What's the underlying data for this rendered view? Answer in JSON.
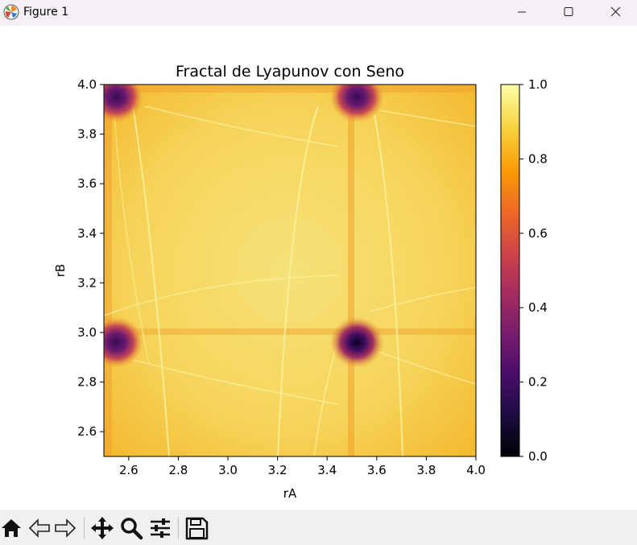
{
  "window": {
    "title": "Figure 1",
    "buttons": [
      "minimize",
      "maximize",
      "close"
    ]
  },
  "toolbar": {
    "buttons": [
      {
        "name": "home-button",
        "icon": "home-icon",
        "tooltip": "Reset original view"
      },
      {
        "name": "back-button",
        "icon": "back-arrow-icon",
        "tooltip": "Back"
      },
      {
        "name": "forward-button",
        "icon": "forward-arrow-icon",
        "tooltip": "Forward"
      },
      {
        "name": "pan-button",
        "icon": "move-icon",
        "tooltip": "Pan"
      },
      {
        "name": "zoom-button",
        "icon": "zoom-icon",
        "tooltip": "Zoom"
      },
      {
        "name": "configure-subplots-button",
        "icon": "sliders-icon",
        "tooltip": "Configure subplots"
      },
      {
        "name": "save-button",
        "icon": "save-icon",
        "tooltip": "Save"
      }
    ]
  },
  "chart_data": {
    "type": "heatmap",
    "title": "Fractal de Lyapunov con Seno",
    "xlabel": "rA",
    "ylabel": "rB",
    "xlim": [
      2.5,
      4.0
    ],
    "ylim": [
      2.5,
      4.0
    ],
    "x_ticks": [
      "2.6",
      "2.8",
      "3.0",
      "3.2",
      "3.4",
      "3.6",
      "3.8",
      "4.0"
    ],
    "x_tick_values": [
      2.6,
      2.8,
      3.0,
      3.2,
      3.4,
      3.6,
      3.8,
      4.0
    ],
    "y_ticks": [
      "2.6",
      "2.8",
      "3.0",
      "3.2",
      "3.4",
      "3.6",
      "3.8",
      "4.0"
    ],
    "y_tick_values": [
      2.6,
      2.8,
      3.0,
      3.2,
      3.4,
      3.6,
      3.8,
      4.0
    ],
    "colormap": "inferno",
    "colorbar": {
      "range": [
        0.0,
        1.0
      ],
      "ticks": [
        "0.0",
        "0.2",
        "0.4",
        "0.6",
        "0.8",
        "1.0"
      ],
      "tick_values": [
        0.0,
        0.2,
        0.4,
        0.6,
        0.8,
        1.0
      ]
    },
    "dark_spots": [
      {
        "rA": 2.55,
        "rB": 3.95,
        "value": 0.25
      },
      {
        "rA": 3.52,
        "rB": 3.95,
        "value": 0.15
      },
      {
        "rA": 2.55,
        "rB": 2.96,
        "value": 0.25
      },
      {
        "rA": 3.52,
        "rB": 2.96,
        "value": 0.05
      }
    ],
    "background_value_range": [
      0.75,
      0.98
    ]
  },
  "colors": {
    "titlebar": "#f5eff6",
    "toolbar": "#f0f0f0",
    "inferno": [
      "#000004",
      "#1b0c41",
      "#4a0c6b",
      "#781c6d",
      "#a52c60",
      "#cf4446",
      "#ed6925",
      "#fb9b06",
      "#f7d13d",
      "#fcffa4"
    ]
  }
}
